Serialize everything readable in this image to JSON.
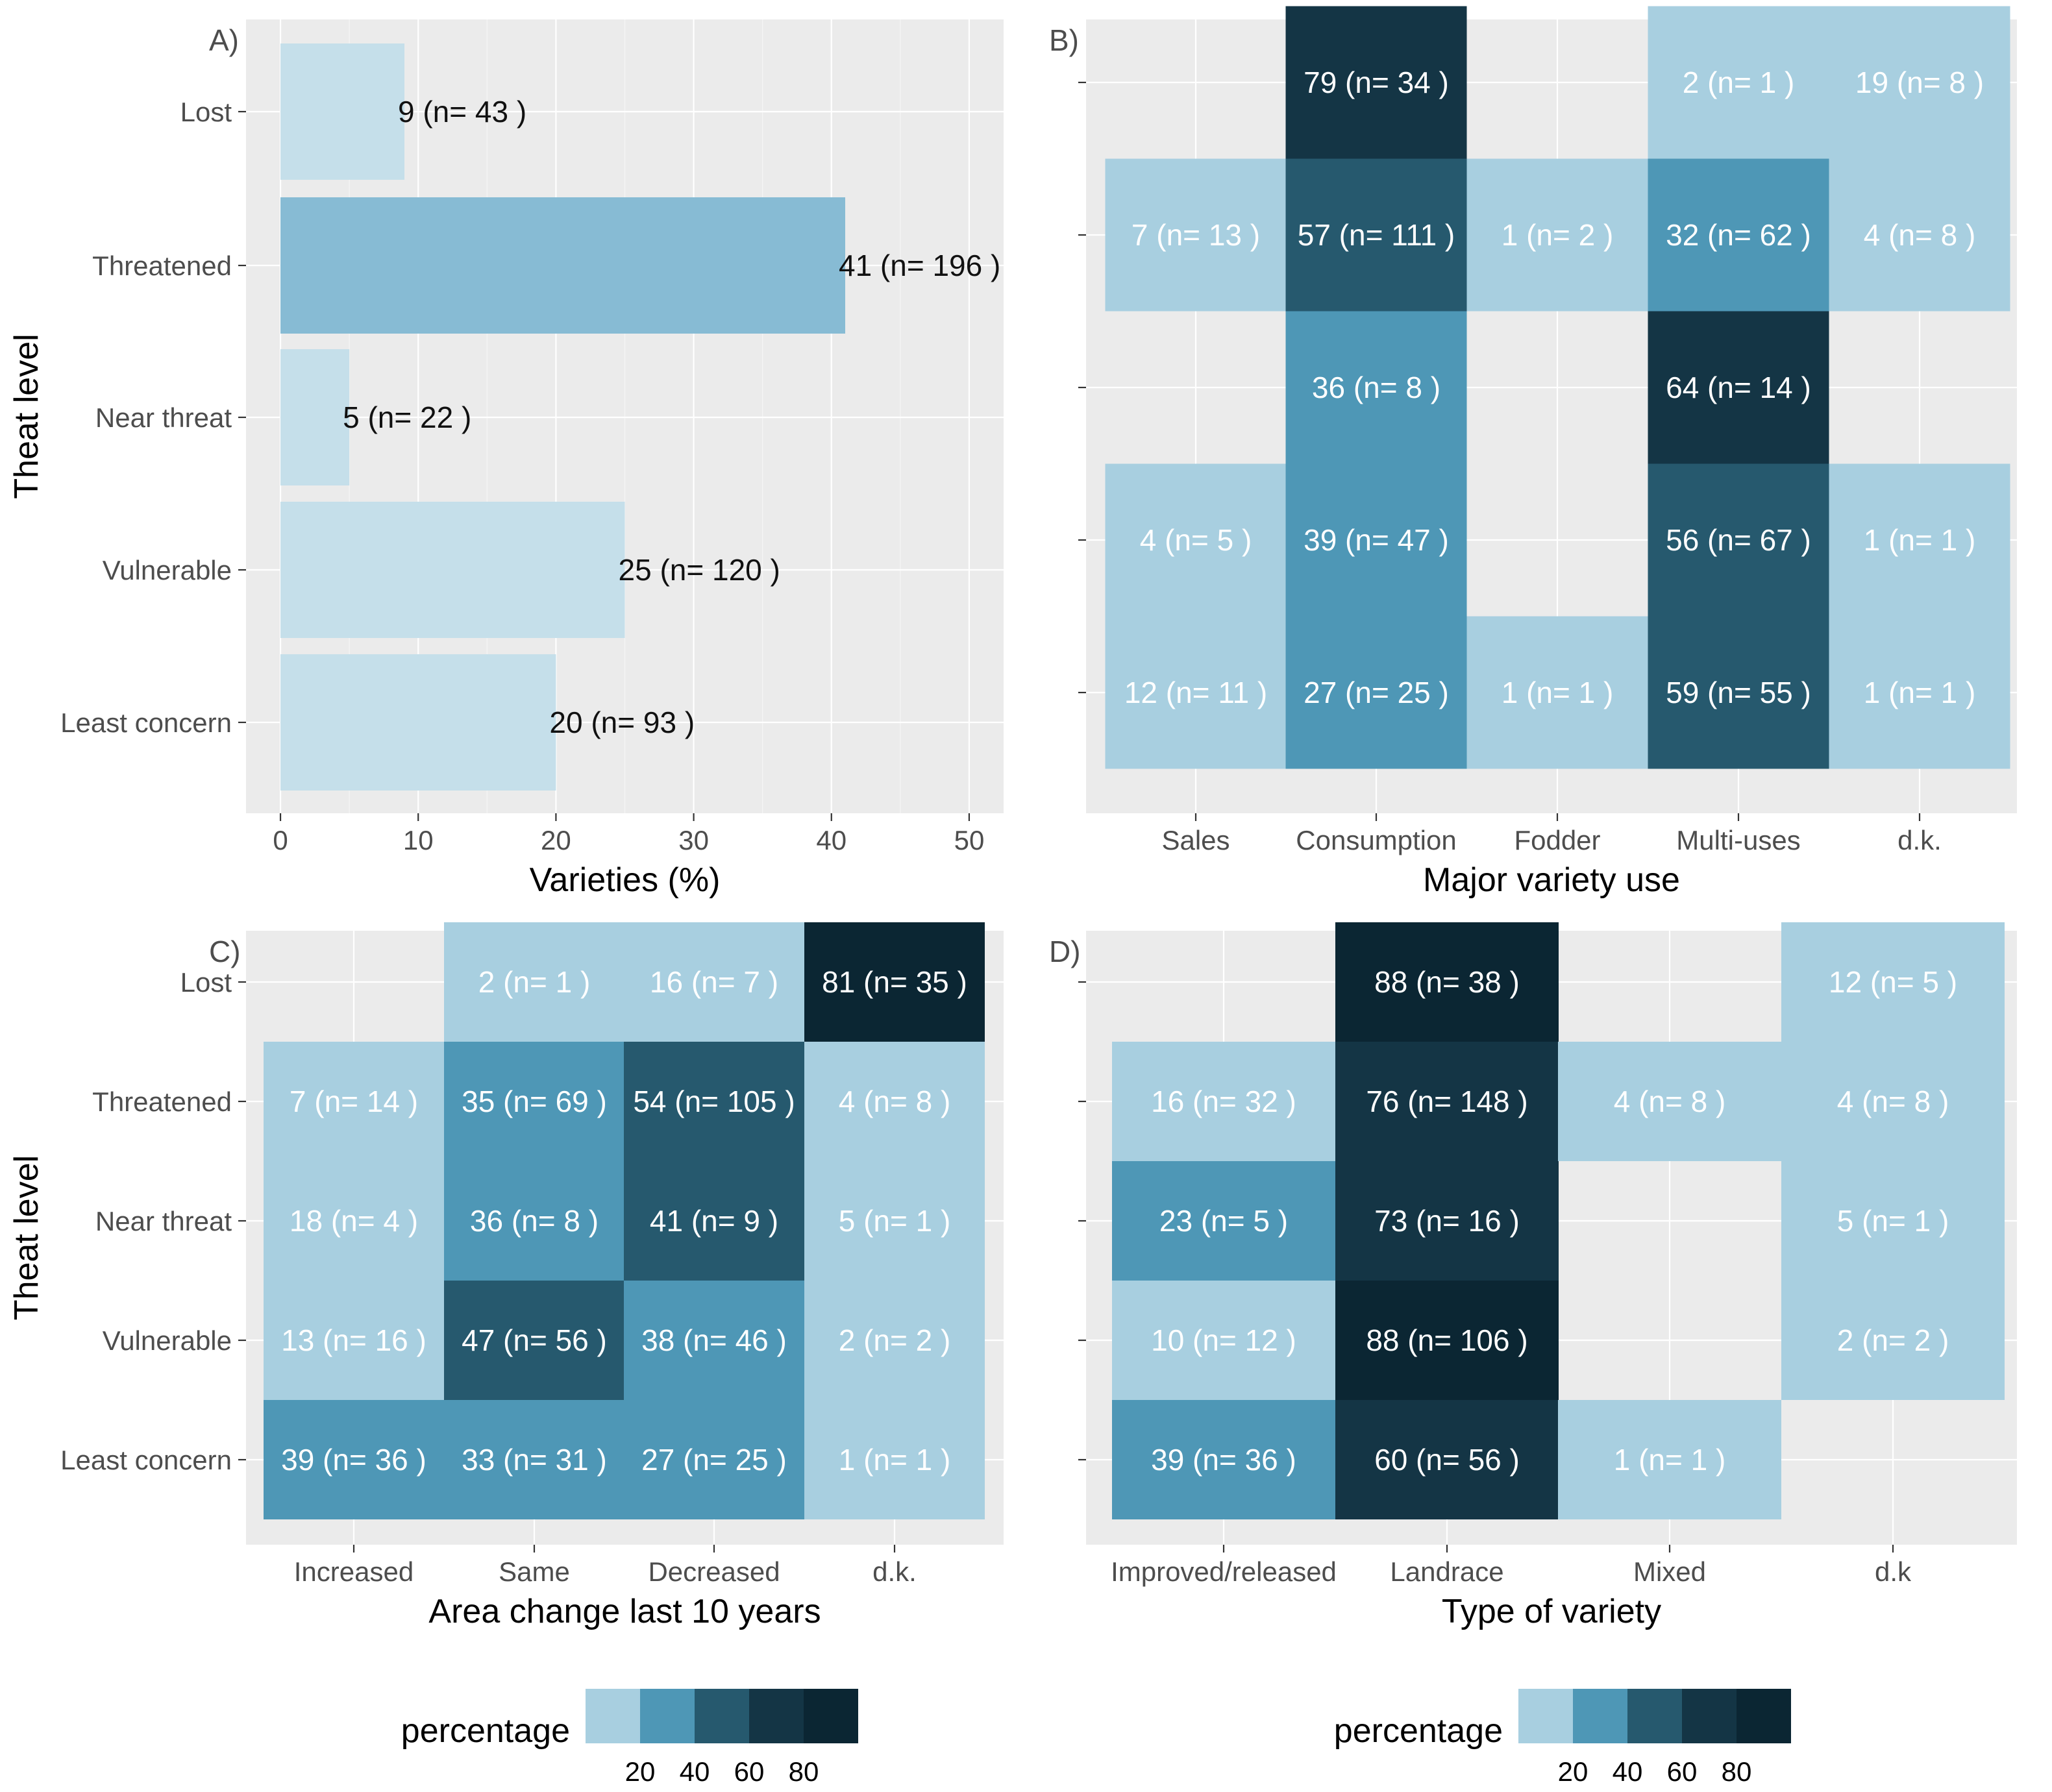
{
  "palette": {
    "bins": [
      "#a8cfe0",
      "#4e97b6",
      "#26596e",
      "#143545",
      "#0b2633"
    ],
    "bar_colors": {
      "light": "#c5dfea",
      "mid": "#87bbd4"
    },
    "dark_text": "#111111",
    "light_text": "#ffffff"
  },
  "chart_data": [
    {
      "id": "A",
      "type": "bar",
      "orientation": "horizontal",
      "tag": "A)",
      "title": "",
      "ylabel": "Theat level",
      "xlabel": "Varieties (%)",
      "categories": [
        "Lost",
        "Threatened",
        "Near threat",
        "Vulnerable",
        "Least concern"
      ],
      "values": [
        9,
        41,
        5,
        25,
        20
      ],
      "labels": [
        "9 (n= 43 )",
        "41 (n= 196 )",
        "5 (n= 22 )",
        "25 (n= 120 )",
        "20 (n= 93 )"
      ],
      "xlim": [
        -2.5,
        52.5
      ],
      "xticks": [
        "0",
        "10",
        "20",
        "30",
        "40",
        "50"
      ],
      "xtick_values": [
        0,
        10,
        20,
        30,
        40,
        50
      ]
    },
    {
      "id": "B",
      "type": "heatmap",
      "tag": "B)",
      "xlabel": "Major variety use",
      "ylabel": "",
      "x_categories": [
        "Sales",
        "Consumption",
        "Fodder",
        "Multi-uses",
        "d.k."
      ],
      "y_categories": [
        "Lost",
        "Threatened",
        "Near threat",
        "Vulnerable",
        "Least concern"
      ],
      "cells": [
        {
          "x": "Consumption",
          "y": "Lost",
          "value": 79,
          "label": "79 (n= 34 )"
        },
        {
          "x": "Multi-uses",
          "y": "Lost",
          "value": 2,
          "label": "2 (n= 1 )"
        },
        {
          "x": "d.k.",
          "y": "Lost",
          "value": 19,
          "label": "19 (n= 8 )"
        },
        {
          "x": "Sales",
          "y": "Threatened",
          "value": 7,
          "label": "7 (n= 13 )"
        },
        {
          "x": "Consumption",
          "y": "Threatened",
          "value": 57,
          "label": "57 (n= 111 )"
        },
        {
          "x": "Fodder",
          "y": "Threatened",
          "value": 1,
          "label": "1 (n= 2 )"
        },
        {
          "x": "Multi-uses",
          "y": "Threatened",
          "value": 32,
          "label": "32 (n= 62 )"
        },
        {
          "x": "d.k.",
          "y": "Threatened",
          "value": 4,
          "label": "4 (n= 8 )"
        },
        {
          "x": "Consumption",
          "y": "Near threat",
          "value": 36,
          "label": "36 (n= 8 )"
        },
        {
          "x": "Multi-uses",
          "y": "Near threat",
          "value": 64,
          "label": "64 (n= 14 )"
        },
        {
          "x": "Sales",
          "y": "Vulnerable",
          "value": 4,
          "label": "4 (n= 5 )"
        },
        {
          "x": "Consumption",
          "y": "Vulnerable",
          "value": 39,
          "label": "39 (n= 47 )"
        },
        {
          "x": "Multi-uses",
          "y": "Vulnerable",
          "value": 56,
          "label": "56 (n= 67 )"
        },
        {
          "x": "d.k.",
          "y": "Vulnerable",
          "value": 1,
          "label": "1 (n= 1 )"
        },
        {
          "x": "Sales",
          "y": "Least concern",
          "value": 12,
          "label": "12 (n= 11 )"
        },
        {
          "x": "Consumption",
          "y": "Least concern",
          "value": 27,
          "label": "27 (n= 25 )"
        },
        {
          "x": "Fodder",
          "y": "Least concern",
          "value": 1,
          "label": "1 (n= 1 )"
        },
        {
          "x": "Multi-uses",
          "y": "Least concern",
          "value": 59,
          "label": "59 (n= 55 )"
        },
        {
          "x": "d.k.",
          "y": "Least concern",
          "value": 1,
          "label": "1 (n= 1 )"
        }
      ]
    },
    {
      "id": "C",
      "type": "heatmap",
      "tag": "C)",
      "xlabel": "Area change last 10 years",
      "ylabel": "Theat level",
      "x_categories": [
        "Increased",
        "Same",
        "Decreased",
        "d.k."
      ],
      "y_categories": [
        "Lost",
        "Threatened",
        "Near threat",
        "Vulnerable",
        "Least concern"
      ],
      "cells": [
        {
          "x": "Same",
          "y": "Lost",
          "value": 2,
          "label": "2 (n= 1 )"
        },
        {
          "x": "Decreased",
          "y": "Lost",
          "value": 16,
          "label": "16 (n= 7 )"
        },
        {
          "x": "d.k.",
          "y": "Lost",
          "value": 81,
          "label": "81 (n= 35 )"
        },
        {
          "x": "Increased",
          "y": "Threatened",
          "value": 7,
          "label": "7 (n= 14 )"
        },
        {
          "x": "Same",
          "y": "Threatened",
          "value": 35,
          "label": "35 (n= 69 )"
        },
        {
          "x": "Decreased",
          "y": "Threatened",
          "value": 54,
          "label": "54 (n= 105 )"
        },
        {
          "x": "d.k.",
          "y": "Threatened",
          "value": 4,
          "label": "4 (n= 8 )"
        },
        {
          "x": "Increased",
          "y": "Near threat",
          "value": 18,
          "label": "18 (n= 4 )"
        },
        {
          "x": "Same",
          "y": "Near threat",
          "value": 36,
          "label": "36 (n= 8 )"
        },
        {
          "x": "Decreased",
          "y": "Near threat",
          "value": 41,
          "label": "41 (n= 9 )"
        },
        {
          "x": "d.k.",
          "y": "Near threat",
          "value": 5,
          "label": "5 (n= 1 )"
        },
        {
          "x": "Increased",
          "y": "Vulnerable",
          "value": 13,
          "label": "13 (n= 16 )"
        },
        {
          "x": "Same",
          "y": "Vulnerable",
          "value": 47,
          "label": "47 (n= 56 )"
        },
        {
          "x": "Decreased",
          "y": "Vulnerable",
          "value": 38,
          "label": "38 (n= 46 )"
        },
        {
          "x": "d.k.",
          "y": "Vulnerable",
          "value": 2,
          "label": "2 (n= 2 )"
        },
        {
          "x": "Increased",
          "y": "Least concern",
          "value": 39,
          "label": "39 (n= 36 )"
        },
        {
          "x": "Same",
          "y": "Least concern",
          "value": 33,
          "label": "33 (n= 31 )"
        },
        {
          "x": "Decreased",
          "y": "Least concern",
          "value": 27,
          "label": "27 (n= 25 )"
        },
        {
          "x": "d.k.",
          "y": "Least concern",
          "value": 1,
          "label": "1 (n= 1 )"
        }
      ]
    },
    {
      "id": "D",
      "type": "heatmap",
      "tag": "D)",
      "xlabel": "Type of variety",
      "ylabel": "",
      "x_categories": [
        "Improved/released",
        "Landrace",
        "Mixed",
        "d.k"
      ],
      "y_categories": [
        "Lost",
        "Threatened",
        "Near threat",
        "Vulnerable",
        "Least concern"
      ],
      "cells": [
        {
          "x": "Landrace",
          "y": "Lost",
          "value": 88,
          "label": "88 (n= 38 )"
        },
        {
          "x": "d.k",
          "y": "Lost",
          "value": 12,
          "label": "12 (n= 5 )"
        },
        {
          "x": "Improved/released",
          "y": "Threatened",
          "value": 16,
          "label": "16 (n= 32 )"
        },
        {
          "x": "Landrace",
          "y": "Threatened",
          "value": 76,
          "label": "76 (n= 148 )"
        },
        {
          "x": "Mixed",
          "y": "Threatened",
          "value": 4,
          "label": "4 (n= 8 )"
        },
        {
          "x": "d.k",
          "y": "Threatened",
          "value": 4,
          "label": "4 (n= 8 )"
        },
        {
          "x": "Improved/released",
          "y": "Near threat",
          "value": 23,
          "label": "23 (n= 5 )"
        },
        {
          "x": "Landrace",
          "y": "Near threat",
          "value": 73,
          "label": "73 (n= 16 )"
        },
        {
          "x": "d.k",
          "y": "Near threat",
          "value": 5,
          "label": "5 (n= 1 )"
        },
        {
          "x": "Improved/released",
          "y": "Vulnerable",
          "value": 10,
          "label": "10 (n= 12 )"
        },
        {
          "x": "Landrace",
          "y": "Vulnerable",
          "value": 88,
          "label": "88 (n= 106 )"
        },
        {
          "x": "d.k",
          "y": "Vulnerable",
          "value": 2,
          "label": "2 (n= 2 )"
        },
        {
          "x": "Improved/released",
          "y": "Least concern",
          "value": 39,
          "label": "39 (n= 36 )"
        },
        {
          "x": "Landrace",
          "y": "Least concern",
          "value": 60,
          "label": "60 (n= 56 )"
        },
        {
          "x": "Mixed",
          "y": "Least concern",
          "value": 1,
          "label": "1 (n= 1 )"
        }
      ]
    }
  ],
  "legends": [
    {
      "title": "percentage",
      "ticks": [
        "20",
        "40",
        "60",
        "80"
      ],
      "tick_values": [
        20,
        40,
        60,
        80
      ],
      "range": [
        0,
        100
      ]
    },
    {
      "title": "percentage",
      "ticks": [
        "20",
        "40",
        "60",
        "80"
      ],
      "tick_values": [
        20,
        40,
        60,
        80
      ],
      "range": [
        0,
        100
      ]
    }
  ]
}
